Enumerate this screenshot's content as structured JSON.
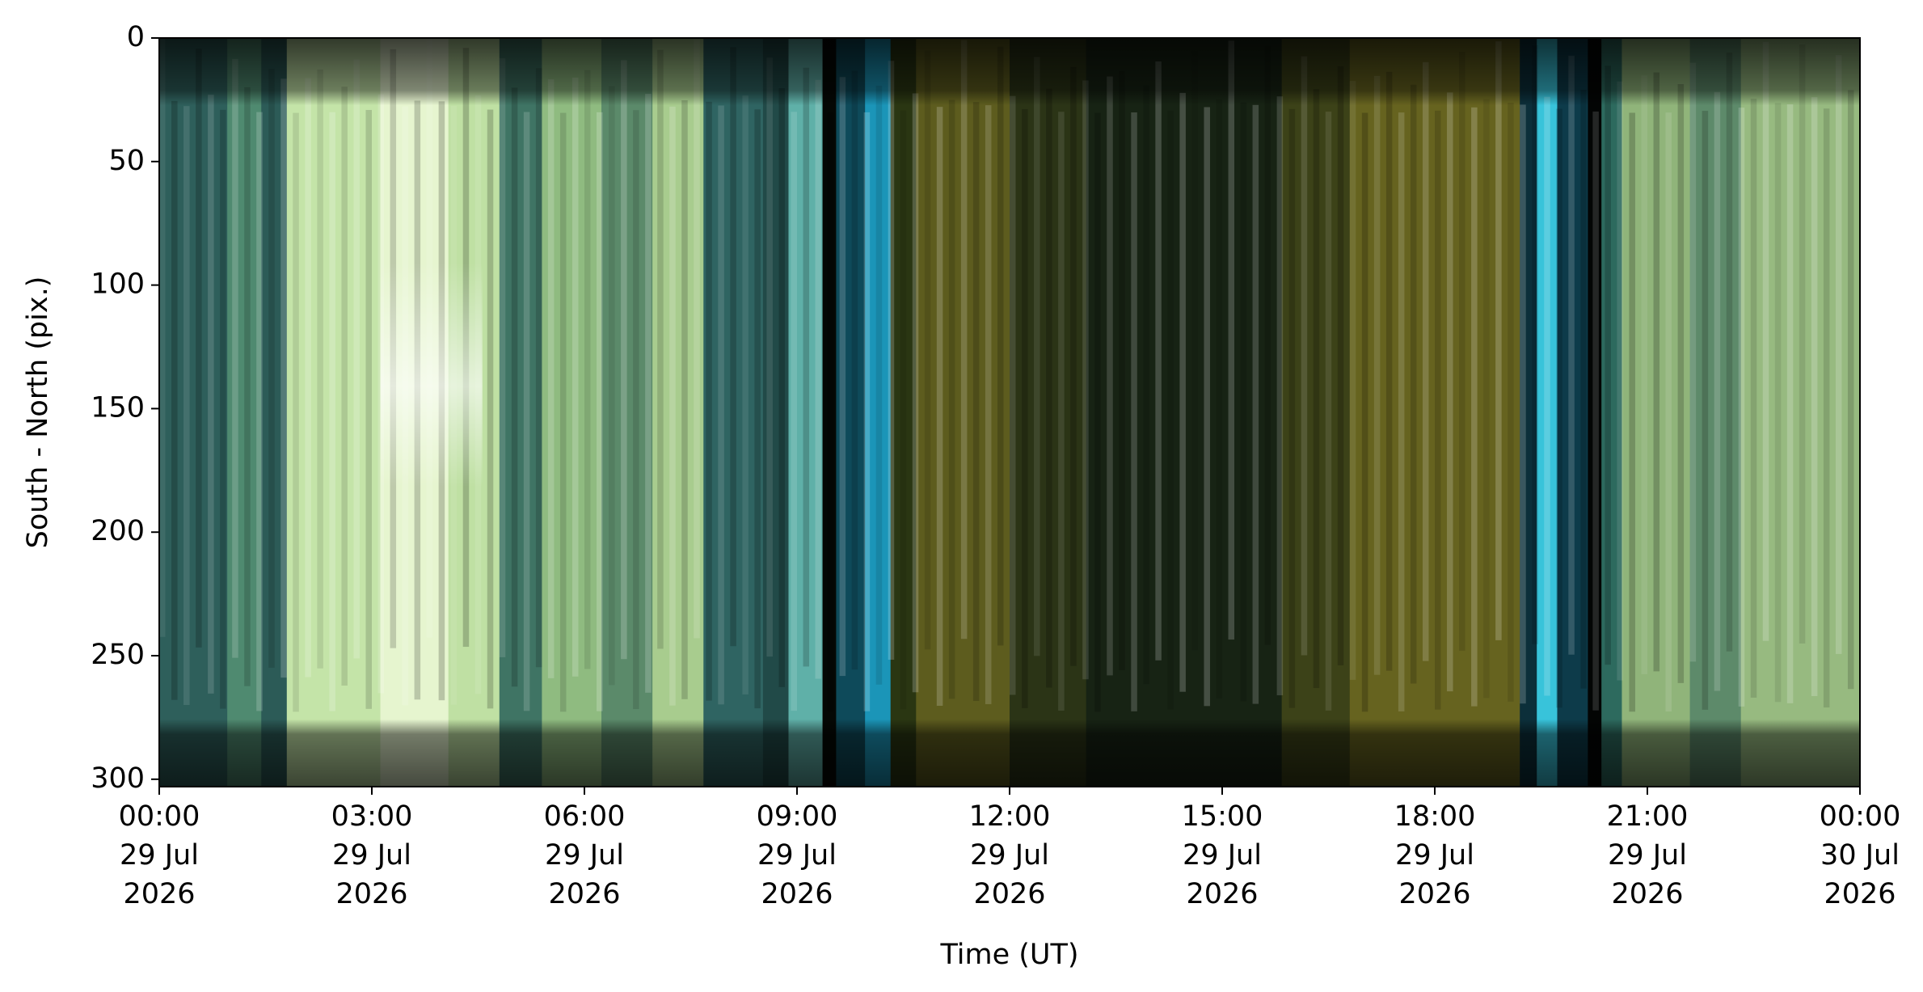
{
  "chart_data": {
    "type": "image",
    "xlabel": "Time (UT)",
    "ylabel": "South - North (pix.)",
    "xlim": [
      "2026-07-29T00:00",
      "2026-07-30T00:00"
    ],
    "xticks": [
      {
        "value": "2026-07-29T00:00",
        "label": "00:00\n29 Jul\n2026"
      },
      {
        "value": "2026-07-29T03:00",
        "label": "03:00\n29 Jul\n2026"
      },
      {
        "value": "2026-07-29T06:00",
        "label": "06:00\n29 Jul\n2026"
      },
      {
        "value": "2026-07-29T09:00",
        "label": "09:00\n29 Jul\n2026"
      },
      {
        "value": "2026-07-29T12:00",
        "label": "12:00\n29 Jul\n2026"
      },
      {
        "value": "2026-07-29T15:00",
        "label": "15:00\n29 Jul\n2026"
      },
      {
        "value": "2026-07-29T18:00",
        "label": "18:00\n29 Jul\n2026"
      },
      {
        "value": "2026-07-29T21:00",
        "label": "21:00\n29 Jul\n2026"
      },
      {
        "value": "2026-07-30T00:00",
        "label": "00:00\n30 Jul\n2026"
      }
    ],
    "ylim": [
      303,
      0
    ],
    "yticks": [
      0,
      50,
      100,
      150,
      200,
      250,
      300
    ]
  }
}
